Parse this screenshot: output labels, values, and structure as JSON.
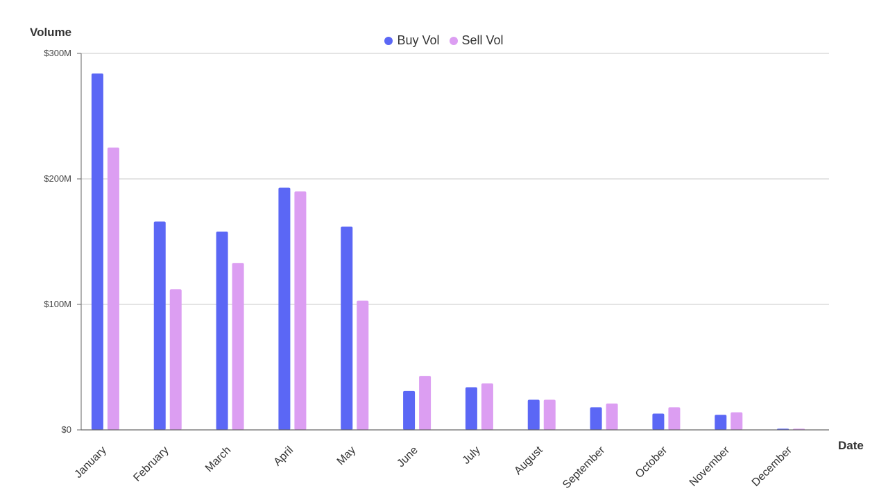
{
  "chart_data": {
    "type": "bar",
    "xlabel": "Date",
    "ylabel": "Volume",
    "categories": [
      "January",
      "February",
      "March",
      "April",
      "May",
      "June",
      "July",
      "August",
      "September",
      "October",
      "November",
      "December"
    ],
    "series": [
      {
        "name": "Buy Vol",
        "color": "#5b67f5",
        "values": [
          284,
          166,
          158,
          193,
          162,
          31,
          34,
          24,
          18,
          13,
          12,
          1
        ]
      },
      {
        "name": "Sell Vol",
        "color": "#dc9ef2",
        "values": [
          225,
          112,
          133,
          190,
          103,
          43,
          37,
          24,
          21,
          18,
          14,
          1
        ]
      }
    ],
    "unit": "M",
    "ylim": [
      0,
      300
    ],
    "yticks": [
      {
        "value": 0,
        "label": "$0"
      },
      {
        "value": 100,
        "label": "$100M"
      },
      {
        "value": 200,
        "label": "$200M"
      },
      {
        "value": 300,
        "label": "$300M"
      }
    ],
    "grid": true,
    "legend_position": "top-center"
  }
}
